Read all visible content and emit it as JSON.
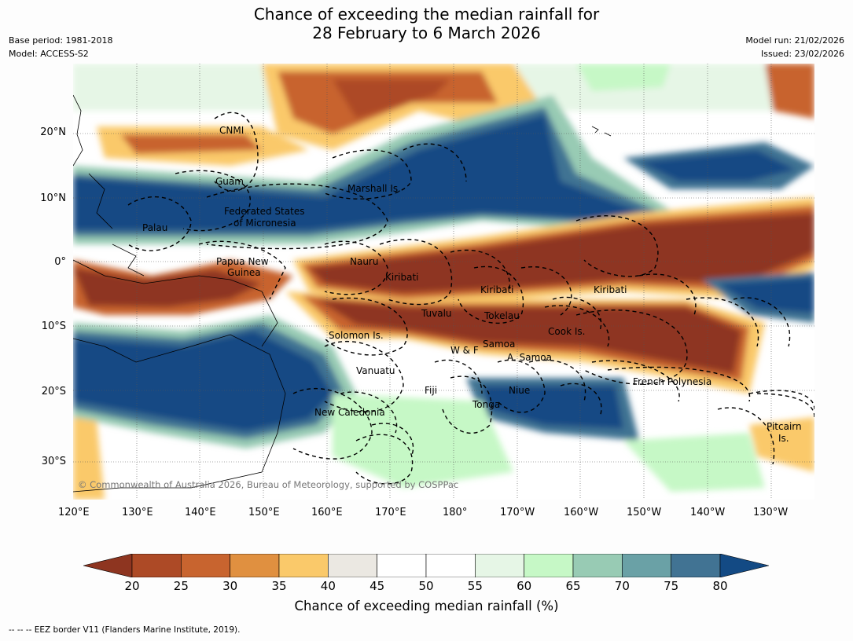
{
  "title": {
    "line1": "Chance of exceeding the median rainfall for",
    "line2": "28 February to 6 March 2026"
  },
  "meta_left": {
    "base_period": "Base period: 1981-2018",
    "model": "Model: ACCESS-S2"
  },
  "meta_right": {
    "model_run": "Model run: 21/02/2026",
    "issued": "Issued: 23/02/2026"
  },
  "axes": {
    "longitude_labels": [
      "120°E",
      "130°E",
      "140°E",
      "150°E",
      "160°E",
      "170°E",
      "180°",
      "170°W",
      "160°W",
      "150°W",
      "140°W",
      "130°W"
    ],
    "latitude_labels": [
      "20°N",
      "10°N",
      "0°",
      "10°S",
      "20°S",
      "30°S"
    ]
  },
  "places": [
    {
      "name": "CNMI",
      "label": "CNMI"
    },
    {
      "name": "guam",
      "label": "Guam"
    },
    {
      "name": "marshall-is",
      "label": "Marshall Is."
    },
    {
      "name": "fsm-1",
      "label": "Federated States"
    },
    {
      "name": "fsm-2",
      "label": "of Micronesia"
    },
    {
      "name": "palau",
      "label": "Palau"
    },
    {
      "name": "png-1",
      "label": "Papua New"
    },
    {
      "name": "png-2",
      "label": "Guinea"
    },
    {
      "name": "nauru",
      "label": "Nauru"
    },
    {
      "name": "kiribati-w",
      "label": "Kiribati"
    },
    {
      "name": "kiribati-c",
      "label": "Kiribati"
    },
    {
      "name": "kiribati-e",
      "label": "Kiribati"
    },
    {
      "name": "tuvalu",
      "label": "Tuvalu"
    },
    {
      "name": "tokelau",
      "label": "Tokelau"
    },
    {
      "name": "cook-is",
      "label": "Cook Is."
    },
    {
      "name": "solomon-is",
      "label": "Solomon Is."
    },
    {
      "name": "wallis-futuna",
      "label": "W & F"
    },
    {
      "name": "samoa",
      "label": "Samoa"
    },
    {
      "name": "american-samoa",
      "label": "A. Samoa"
    },
    {
      "name": "vanuatu",
      "label": "Vanuatu"
    },
    {
      "name": "fiji",
      "label": "Fiji"
    },
    {
      "name": "niue",
      "label": "Niue"
    },
    {
      "name": "french-polynesia",
      "label": "French Polynesia"
    },
    {
      "name": "tonga",
      "label": "Tonga"
    },
    {
      "name": "new-caledonia",
      "label": "New Caledonia"
    },
    {
      "name": "pitcairn-1",
      "label": "Pitcairn"
    },
    {
      "name": "pitcairn-2",
      "label": "Is."
    }
  ],
  "credit": "© Commonwealth of Australia 2026, Bureau of Meteorology, supported by COSPPac",
  "colorbar": {
    "title": "Chance of exceeding median rainfall (%)",
    "ticks": [
      "20",
      "25",
      "30",
      "35",
      "40",
      "45",
      "50",
      "55",
      "60",
      "65",
      "70",
      "75",
      "80"
    ],
    "bins": [
      {
        "range": "<20",
        "color": "#8e3520"
      },
      {
        "range": "20-25",
        "color": "#ad4a26"
      },
      {
        "range": "25-30",
        "color": "#c8642f"
      },
      {
        "range": "30-35",
        "color": "#e09040"
      },
      {
        "range": "35-40",
        "color": "#fac96a"
      },
      {
        "range": "40-45",
        "color": "#ebe8e2"
      },
      {
        "range": "45-50",
        "color": "#ffffff"
      },
      {
        "range": "50-55",
        "color": "#ffffff"
      },
      {
        "range": "55-60",
        "color": "#e6f6e6"
      },
      {
        "range": "60-65",
        "color": "#c6f8c6"
      },
      {
        "range": "65-70",
        "color": "#98cbb4"
      },
      {
        "range": "70-75",
        "color": "#6aa1a6"
      },
      {
        "range": "75-80",
        "color": "#417393"
      },
      {
        "range": ">80",
        "color": "#134a84"
      }
    ]
  },
  "footnote": "--  --  -- EEZ border V11 (Flanders Marine Institute, 2019)."
}
